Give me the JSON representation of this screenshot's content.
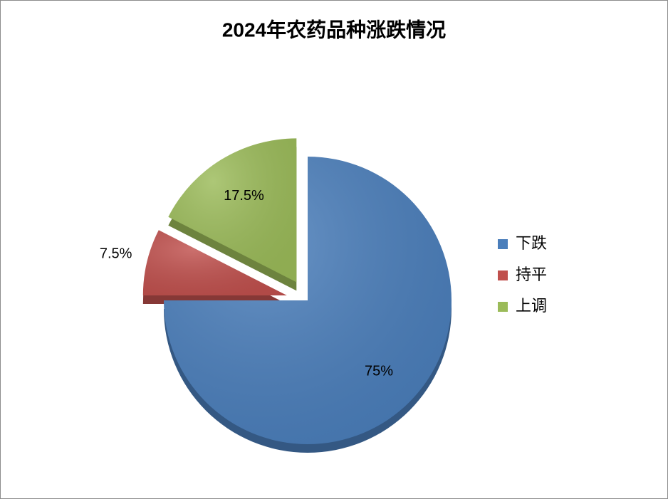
{
  "chart_data": {
    "type": "pie",
    "title": "2024年农药品种涨跌情况",
    "categories": [
      "下跌",
      "持平",
      "上调"
    ],
    "values": [
      75,
      7.5,
      17.5
    ],
    "value_labels": [
      "75%",
      "7.5%",
      "17.5%"
    ],
    "colors": [
      "#4a7ebb",
      "#c0504d",
      "#9bbb59"
    ],
    "legend": "right"
  }
}
